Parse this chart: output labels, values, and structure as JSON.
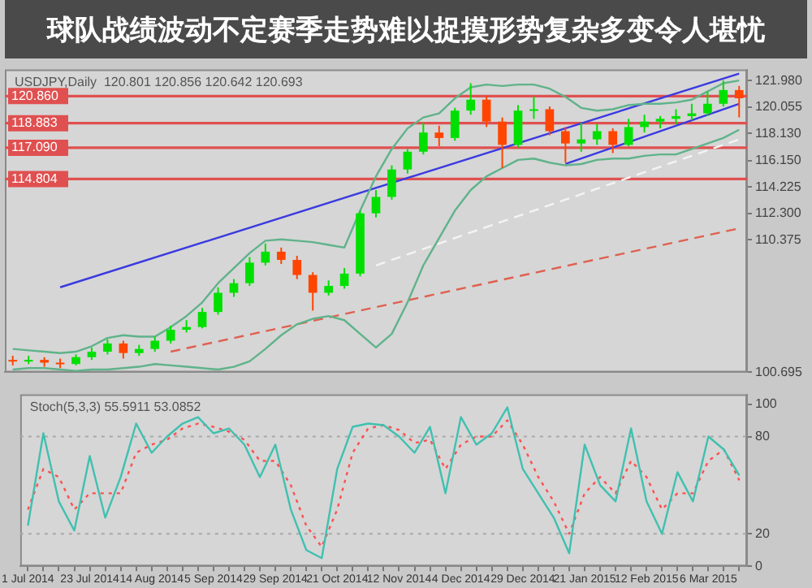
{
  "chart_data": [
    {
      "type": "candlestick",
      "title": "USDJPY,Daily  120.801 120.856 120.642 120.693",
      "categories": [
        null,
        null,
        null,
        null,
        null,
        null,
        null,
        null,
        null,
        null,
        null,
        null,
        null,
        null,
        null,
        null,
        null,
        null,
        null,
        null,
        null,
        null,
        null,
        null,
        null,
        null,
        null,
        null,
        null,
        null,
        null,
        null,
        null,
        null,
        null,
        null,
        null,
        null,
        null,
        null,
        null,
        null,
        null,
        null,
        null,
        null,
        null
      ],
      "ohlc": [
        [
          101.6,
          101.9,
          101.2,
          101.5
        ],
        [
          101.5,
          101.9,
          101.3,
          101.6
        ],
        [
          101.6,
          101.8,
          101.1,
          101.4
        ],
        [
          101.4,
          101.7,
          101.0,
          101.3
        ],
        [
          101.3,
          102.0,
          101.2,
          101.8
        ],
        [
          101.8,
          102.5,
          101.6,
          102.2
        ],
        [
          102.2,
          103.1,
          102.0,
          102.8
        ],
        [
          102.8,
          103.0,
          101.7,
          102.1
        ],
        [
          102.1,
          102.7,
          101.9,
          102.4
        ],
        [
          102.4,
          103.3,
          102.2,
          103.0
        ],
        [
          103.0,
          104.1,
          102.8,
          103.8
        ],
        [
          103.8,
          104.5,
          103.6,
          104.0
        ],
        [
          104.0,
          105.4,
          103.9,
          105.1
        ],
        [
          105.1,
          106.9,
          104.9,
          106.5
        ],
        [
          106.5,
          107.5,
          106.2,
          107.2
        ],
        [
          107.2,
          109.1,
          107.0,
          108.7
        ],
        [
          108.7,
          110.1,
          108.5,
          109.5
        ],
        [
          109.5,
          109.8,
          108.6,
          108.9
        ],
        [
          108.9,
          109.2,
          107.5,
          107.8
        ],
        [
          107.8,
          108.0,
          105.2,
          106.5
        ],
        [
          106.5,
          107.4,
          106.3,
          107.0
        ],
        [
          107.0,
          108.3,
          106.8,
          107.9
        ],
        [
          107.9,
          112.5,
          107.7,
          112.3
        ],
        [
          112.3,
          114.0,
          112.0,
          113.5
        ],
        [
          113.5,
          115.8,
          113.3,
          115.5
        ],
        [
          115.5,
          117.0,
          115.2,
          116.8
        ],
        [
          116.8,
          118.9,
          116.6,
          118.2
        ],
        [
          118.2,
          118.7,
          117.2,
          117.8
        ],
        [
          117.8,
          120.0,
          117.6,
          119.8
        ],
        [
          119.8,
          121.8,
          119.5,
          120.6
        ],
        [
          120.6,
          120.9,
          118.6,
          119.0
        ],
        [
          119.0,
          119.3,
          115.6,
          117.3
        ],
        [
          117.3,
          120.2,
          117.1,
          119.8
        ],
        [
          119.8,
          120.8,
          119.2,
          119.9
        ],
        [
          119.9,
          120.1,
          118.0,
          118.3
        ],
        [
          118.3,
          118.6,
          116.0,
          117.4
        ],
        [
          117.4,
          118.9,
          116.8,
          117.7
        ],
        [
          117.7,
          118.8,
          117.3,
          118.3
        ],
        [
          118.3,
          118.5,
          116.7,
          117.3
        ],
        [
          117.3,
          119.2,
          117.2,
          118.6
        ],
        [
          118.6,
          119.5,
          118.2,
          119.0
        ],
        [
          119.0,
          119.4,
          118.5,
          119.2
        ],
        [
          119.2,
          119.9,
          118.8,
          119.4
        ],
        [
          119.4,
          120.3,
          119.1,
          119.6
        ],
        [
          119.6,
          121.2,
          119.4,
          120.3
        ],
        [
          120.3,
          122.0,
          120.1,
          121.3
        ],
        [
          121.3,
          121.6,
          119.3,
          120.7
        ]
      ],
      "colors": [
        "#ff4500",
        "#00e000",
        "#ff4500",
        "#ff4500",
        "#00e000",
        "#00e000",
        "#00e000",
        "#ff4500",
        "#00e000",
        "#00e000",
        "#00e000",
        "#00e000",
        "#00e000",
        "#00e000",
        "#00e000",
        "#00e000",
        "#00e000",
        "#ff4500",
        "#ff4500",
        "#ff4500",
        "#00e000",
        "#00e000",
        "#00e000",
        "#00e000",
        "#00e000",
        "#00e000",
        "#00e000",
        "#ff4500",
        "#00e000",
        "#00e000",
        "#ff4500",
        "#ff4500",
        "#00e000",
        "#00e000",
        "#ff4500",
        "#ff4500",
        "#00e000",
        "#00e000",
        "#ff4500",
        "#00e000",
        "#00e000",
        "#00e000",
        "#00e000",
        "#00e000",
        "#00e000",
        "#00e000",
        "#ff4500"
      ],
      "series": [
        {
          "type": "line",
          "color": "#5fb38a",
          "line_style": "solid",
          "values": [
            102.4,
            102.3,
            102.2,
            102.1,
            102.2,
            102.6,
            103.2,
            103.4,
            103.3,
            103.3,
            104.0,
            104.8,
            105.8,
            107.2,
            108.3,
            109.4,
            110.3,
            110.4,
            110.3,
            110.2,
            110.0,
            109.8,
            112.5,
            115.0,
            117.0,
            118.5,
            119.3,
            119.6,
            120.7,
            121.5,
            121.7,
            121.6,
            121.7,
            121.7,
            121.4,
            120.8,
            120.0,
            119.8,
            119.9,
            120.2,
            120.3,
            120.3,
            120.4,
            120.6,
            121.2,
            121.8,
            122.0
          ]
        },
        {
          "type": "line",
          "color": "#5fb38a",
          "line_style": "solid",
          "values": [
            100.9,
            101.0,
            101.0,
            100.9,
            100.8,
            100.9,
            100.9,
            101.0,
            101.1,
            101.3,
            101.2,
            101.1,
            101.0,
            100.9,
            101.1,
            101.5,
            102.4,
            103.4,
            104.2,
            104.6,
            104.8,
            104.5,
            103.5,
            102.5,
            103.5,
            105.8,
            108.5,
            110.5,
            112.5,
            114.0,
            115.0,
            115.6,
            116.2,
            116.3,
            116.0,
            115.8,
            115.9,
            116.2,
            116.3,
            116.3,
            116.5,
            116.6,
            116.6,
            117.0,
            117.4,
            117.8,
            118.4
          ]
        },
        {
          "type": "line",
          "color": "#f4f4f4",
          "line_style": "dashed",
          "values": [
            null,
            null,
            null,
            null,
            null,
            null,
            null,
            null,
            null,
            null,
            null,
            null,
            null,
            null,
            null,
            null,
            null,
            null,
            null,
            null,
            null,
            null,
            null,
            108.5,
            null,
            null,
            null,
            null,
            null,
            null,
            null,
            null,
            null,
            null,
            null,
            null,
            null,
            null,
            null,
            null,
            null,
            null,
            null,
            null,
            null,
            null,
            117.7
          ]
        },
        {
          "type": "line",
          "color": "#e06050",
          "line_style": "dashed",
          "values": [
            null,
            null,
            null,
            null,
            null,
            null,
            null,
            null,
            null,
            null,
            102.2,
            null,
            null,
            null,
            null,
            null,
            null,
            null,
            null,
            null,
            null,
            null,
            null,
            null,
            null,
            null,
            null,
            null,
            null,
            null,
            null,
            null,
            null,
            null,
            null,
            null,
            null,
            null,
            null,
            null,
            null,
            null,
            null,
            null,
            null,
            null,
            111.2
          ]
        },
        {
          "type": "line",
          "color": "#3a3ae0",
          "line_style": "solid",
          "values": [
            null,
            null,
            null,
            106.9,
            null,
            null,
            null,
            null,
            null,
            null,
            null,
            null,
            null,
            null,
            null,
            null,
            null,
            null,
            null,
            null,
            null,
            null,
            null,
            null,
            null,
            null,
            null,
            null,
            null,
            null,
            null,
            null,
            null,
            null,
            null,
            null,
            null,
            null,
            null,
            null,
            null,
            null,
            null,
            null,
            null,
            null,
            122.5
          ]
        },
        {
          "type": "line",
          "color": "#3a3ae0",
          "line_style": "solid",
          "values": [
            null,
            null,
            null,
            null,
            null,
            null,
            null,
            null,
            null,
            null,
            null,
            null,
            null,
            null,
            null,
            null,
            null,
            null,
            null,
            null,
            null,
            null,
            null,
            null,
            null,
            null,
            null,
            null,
            null,
            null,
            null,
            null,
            null,
            null,
            null,
            115.9,
            null,
            null,
            null,
            null,
            null,
            null,
            null,
            null,
            null,
            null,
            120.3
          ]
        }
      ],
      "ylim": [
        100.695,
        122.8
      ],
      "yticks": [
        {
          "value": 121.98,
          "label": "121.980"
        },
        {
          "value": 120.055,
          "label": "120.055"
        },
        {
          "value": 118.13,
          "label": "118.130"
        },
        {
          "value": 116.15,
          "label": "116.150"
        },
        {
          "value": 114.225,
          "label": "114.225"
        },
        {
          "value": 112.3,
          "label": "112.300"
        },
        {
          "value": 110.375,
          "label": "110.375"
        },
        {
          "value": 100.695,
          "label": "100.695"
        }
      ],
      "ref_lines": [
        {
          "axis": "y",
          "value": 120.86,
          "label": "120.860",
          "color": "#e05050"
        },
        {
          "axis": "y",
          "value": 118.883,
          "label": "118.883",
          "color": "#e05050"
        },
        {
          "axis": "y",
          "value": 117.09,
          "label": "117.090",
          "color": "#e05050"
        },
        {
          "axis": "y",
          "value": 114.804,
          "label": "114.804",
          "color": "#e05050"
        }
      ],
      "annotations": [
        "球队战绩波动不定赛季走势难以捉摸形势复杂多变令人堪忧"
      ],
      "tick_labels": "y"
    },
    {
      "type": "line",
      "title": "Stoch(5,3,3) 55.5911 53.0852",
      "categories": [
        "1 Jul 2014",
        null,
        null,
        null,
        "23 Jul 2014",
        null,
        null,
        null,
        "14 Aug 2014",
        null,
        null,
        null,
        "5 Sep 2014",
        null,
        null,
        null,
        "29 Sep 2014",
        null,
        null,
        null,
        "21 Oct 2014",
        null,
        null,
        null,
        "12 Nov 2014",
        null,
        null,
        null,
        "4 Dec 2014",
        null,
        null,
        null,
        "29 Dec 2014",
        null,
        null,
        null,
        "21 Jan 2015",
        null,
        null,
        null,
        "12 Feb 2015",
        null,
        null,
        null,
        "6 Mar 2015",
        null,
        null
      ],
      "series": [
        {
          "color": "#40c0b0",
          "line_style": "solid",
          "values": [
            25,
            82,
            40,
            22,
            68,
            30,
            55,
            88,
            70,
            80,
            88,
            92,
            82,
            85,
            75,
            55,
            75,
            35,
            10,
            5,
            60,
            86,
            88,
            87,
            80,
            70,
            86,
            45,
            92,
            75,
            82,
            98,
            60,
            45,
            30,
            8,
            75,
            50,
            40,
            85,
            40,
            20,
            58,
            40,
            80,
            72,
            56
          ]
        },
        {
          "color": "#ff5050",
          "line_style": "dotted",
          "values": [
            35,
            60,
            55,
            35,
            45,
            45,
            45,
            70,
            75,
            78,
            85,
            88,
            86,
            83,
            78,
            65,
            65,
            50,
            25,
            12,
            35,
            70,
            85,
            87,
            84,
            76,
            78,
            60,
            75,
            80,
            80,
            90,
            75,
            55,
            40,
            20,
            45,
            55,
            45,
            65,
            55,
            35,
            45,
            45,
            65,
            72,
            53
          ]
        }
      ],
      "ylim": [
        0,
        106
      ],
      "yticks": [
        0,
        20,
        80,
        100
      ],
      "ref_lines": [
        {
          "axis": "y",
          "value": 80,
          "color": "#a8a8a8",
          "line_style": "dotted"
        },
        {
          "axis": "y",
          "value": 20,
          "color": "#a8a8a8",
          "line_style": "dotted"
        }
      ]
    }
  ]
}
